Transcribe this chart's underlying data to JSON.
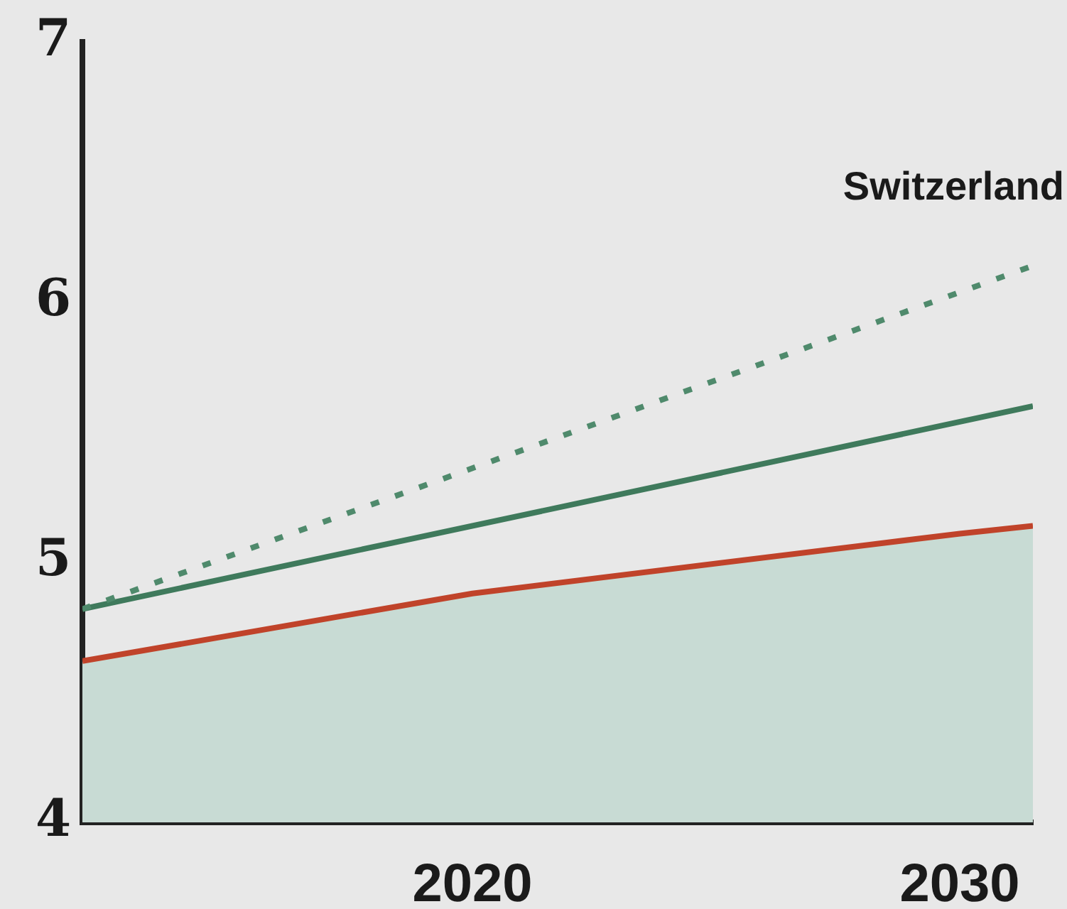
{
  "chart_data": {
    "type": "line",
    "annotations": [
      "Switzerland"
    ],
    "xlim": [
      2012,
      2031.5
    ],
    "xticks": [
      2020,
      2030
    ],
    "ylim": [
      4,
      7
    ],
    "yticks": [
      4,
      5,
      6,
      7
    ],
    "grid": false,
    "legend": false,
    "marker": "none",
    "series": [
      {
        "type": "area",
        "color": "#c0432a",
        "x": [
          2012,
          2020,
          2030,
          2031.5
        ],
        "values": [
          4.62,
          4.88,
          5.11,
          5.14
        ]
      },
      {
        "type": "line",
        "color": "#3f7a5c",
        "x": [
          2012,
          2031.5
        ],
        "values": [
          4.82,
          5.6
        ],
        "line_style": "solid"
      },
      {
        "type": "line",
        "color": "#4f8a6c",
        "x": [
          2012,
          2031.5
        ],
        "values": [
          4.82,
          6.14
        ],
        "line_style": "dashed"
      }
    ]
  }
}
